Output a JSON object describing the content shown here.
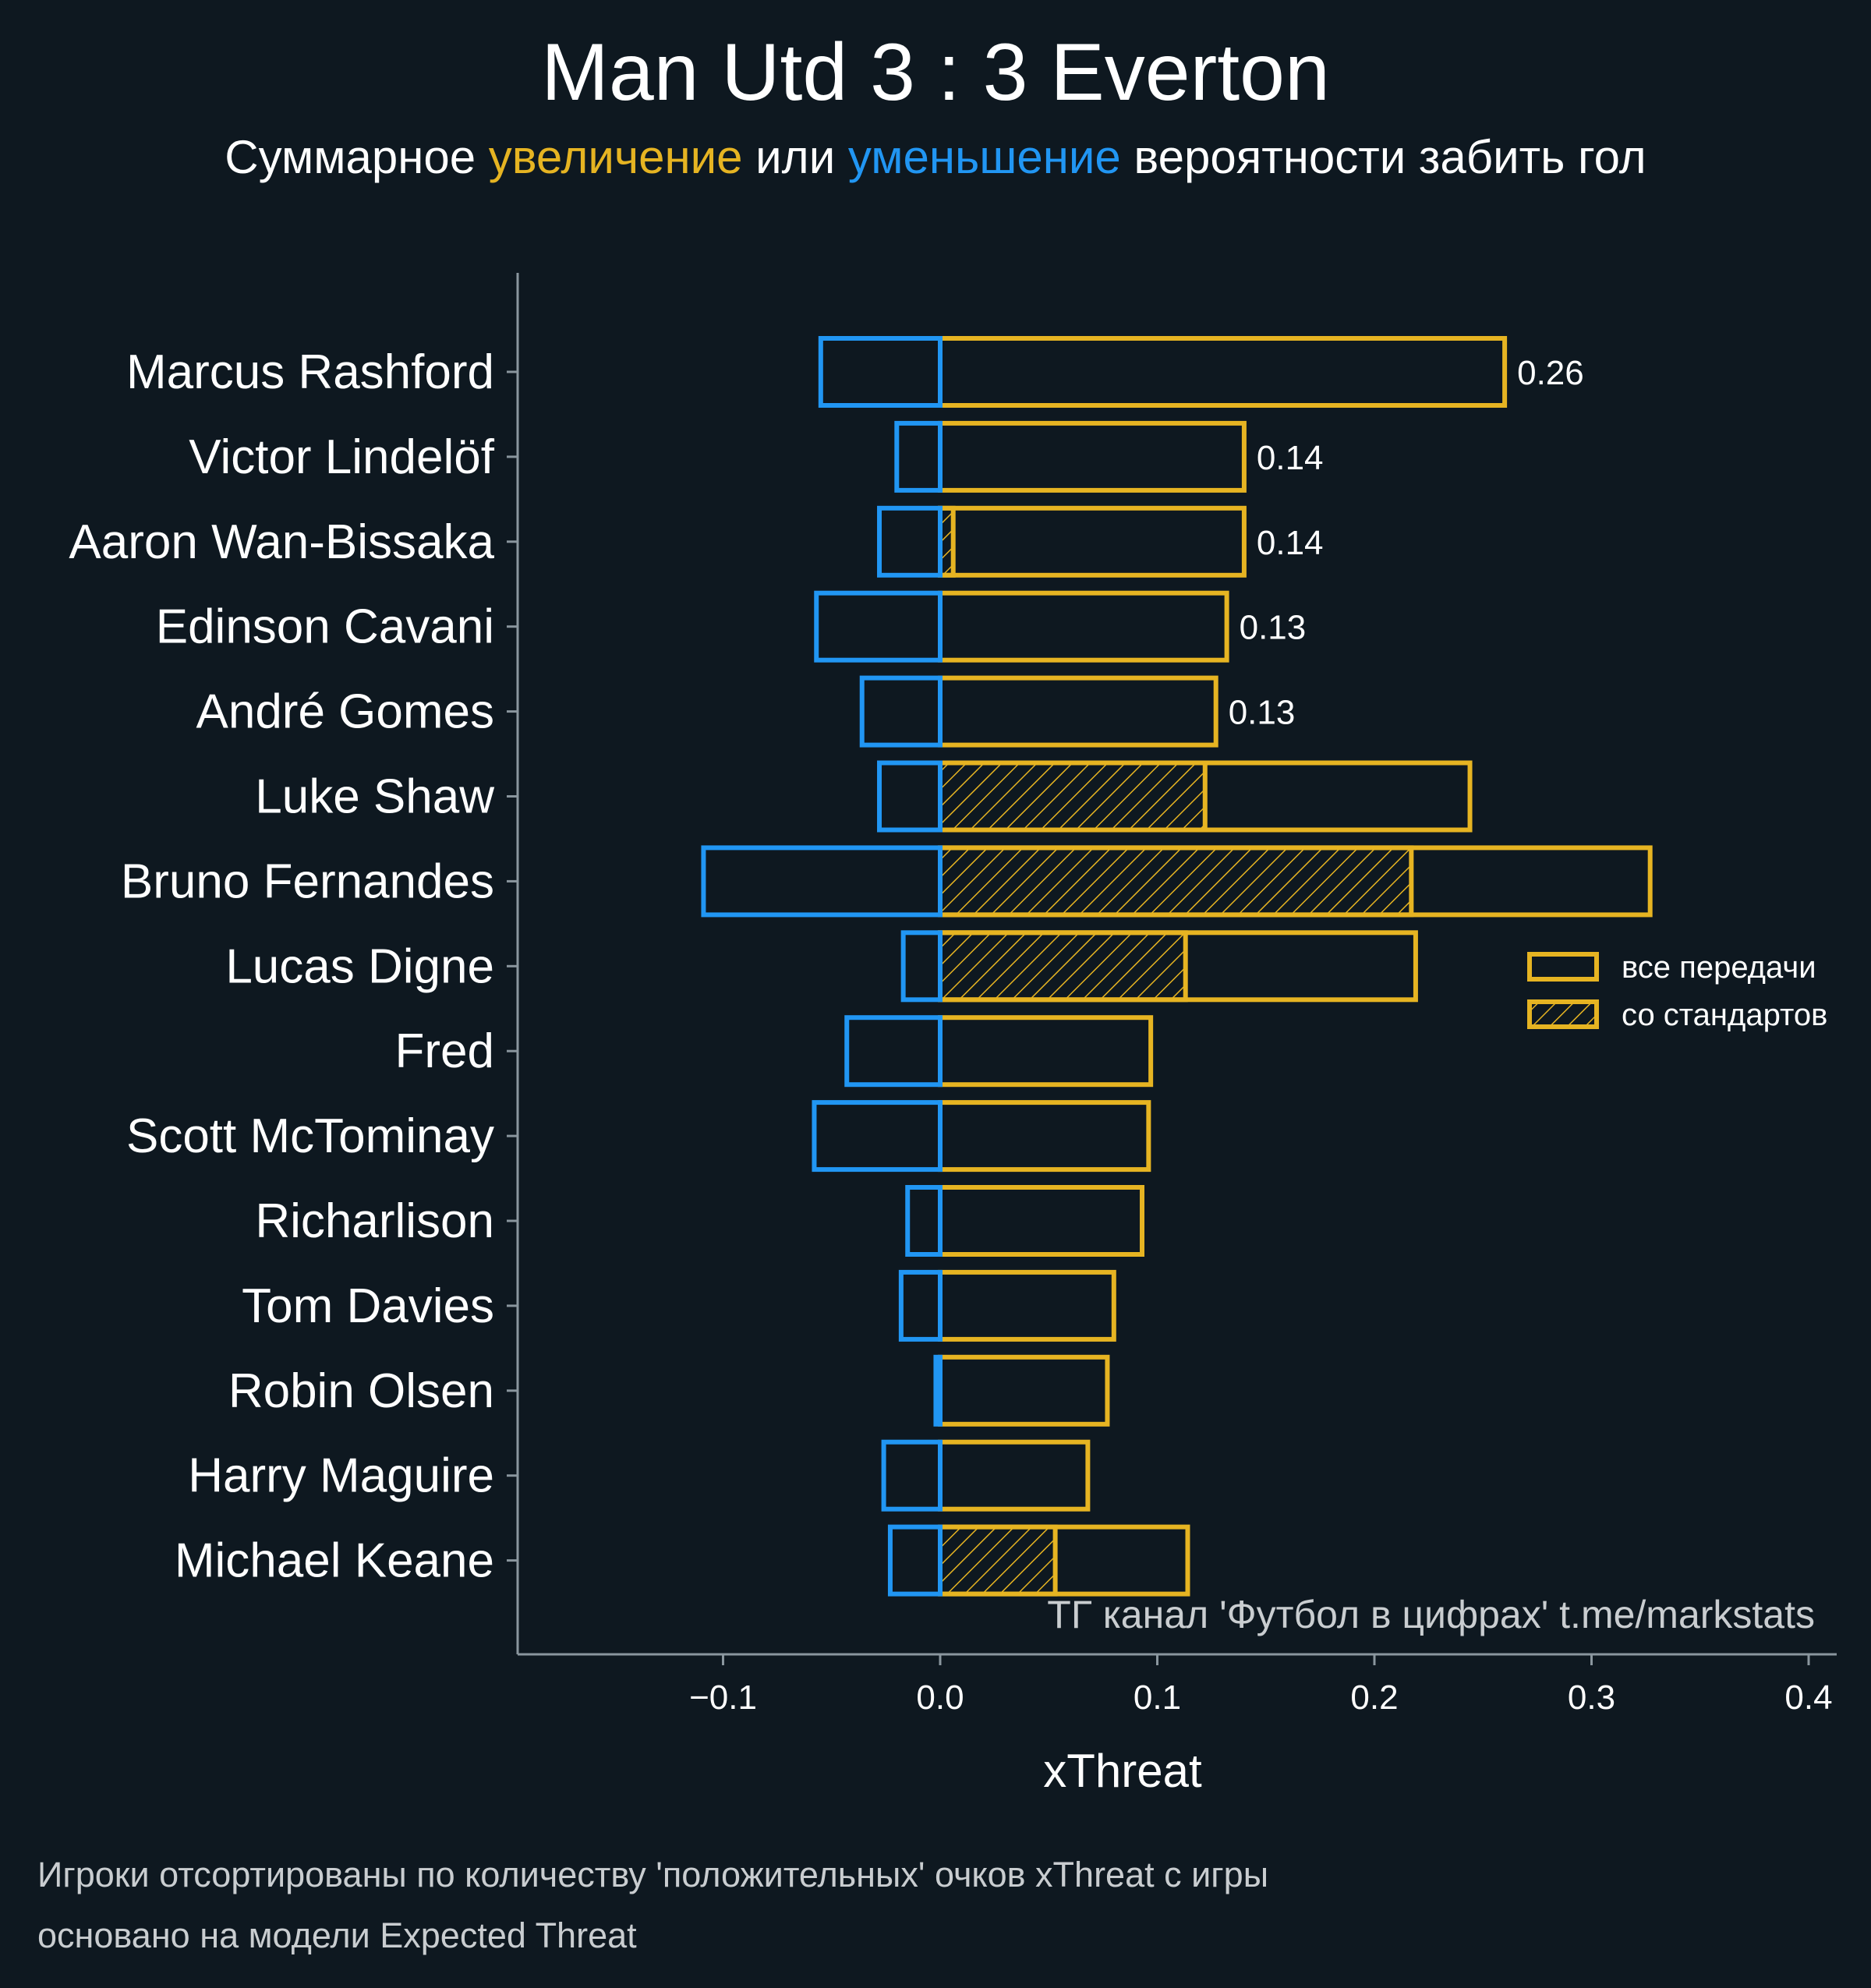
{
  "colors": {
    "background": "#0e1820",
    "increase": "#e6b422",
    "decrease": "#2196f3",
    "text": "#ffffff",
    "axis": "#8a969e",
    "footnote": "#c9cdd0"
  },
  "header": {
    "title": "Man Utd 3 : 3 Everton",
    "subtitle_part1": "Суммарное ",
    "subtitle_increase": "увеличение",
    "subtitle_part2": " или ",
    "subtitle_decrease": "уменьшение",
    "subtitle_part3": " вероятности забить гол"
  },
  "watermark": "ТГ канал 'Футбол в цифрах'  t.me/markstats",
  "footnotes": [
    "Игроки отсортированы по количеству 'положительных' очков xThreat с игры",
    "основано на модели Expected Threat"
  ],
  "legend": {
    "all_passes": "все передачи",
    "set_pieces": "со стандартов"
  },
  "chart_data": {
    "type": "bar",
    "orientation": "horizontal",
    "xlabel": "xThreat",
    "ylabel": "",
    "xlim": [
      -0.195,
      0.415
    ],
    "xticks": [
      -0.1,
      0.0,
      0.1,
      0.2,
      0.3,
      0.4
    ],
    "xtick_labels": [
      "−0.1",
      "0.0",
      "0.1",
      "0.2",
      "0.3",
      "0.4"
    ],
    "legend_position": "right",
    "categories": [
      "Marcus Rashford",
      "Victor Lindelöf",
      "Aaron Wan-Bissaka",
      "Edinson Cavani",
      "André Gomes",
      "Luke Shaw",
      "Bruno Fernandes",
      "Lucas Digne",
      "Fred",
      "Scott McTominay",
      "Richarlison",
      "Tom Davies",
      "Robin Olsen",
      "Harry Maguire",
      "Michael Keane"
    ],
    "series": [
      {
        "name": "все передачи",
        "values": [
          0.26,
          0.14,
          0.14,
          0.132,
          0.127,
          0.244,
          0.327,
          0.219,
          0.097,
          0.096,
          0.093,
          0.08,
          0.077,
          0.068,
          0.114
        ]
      },
      {
        "name": "со стандартов",
        "values": [
          0,
          0,
          0.006,
          0,
          0,
          0.122,
          0.217,
          0.113,
          0,
          0,
          0,
          0,
          0,
          0,
          0.053
        ]
      },
      {
        "values": [
          -0.055,
          -0.02,
          -0.028,
          -0.057,
          -0.036,
          -0.028,
          -0.109,
          -0.017,
          -0.043,
          -0.058,
          -0.015,
          -0.018,
          -0.002,
          -0.026,
          -0.023
        ]
      }
    ],
    "value_labels": [
      "0.26",
      "0.14",
      "0.14",
      "0.13",
      "0.13",
      "",
      "",
      "",
      "",
      "",
      "",
      "",
      "",
      "",
      ""
    ]
  }
}
